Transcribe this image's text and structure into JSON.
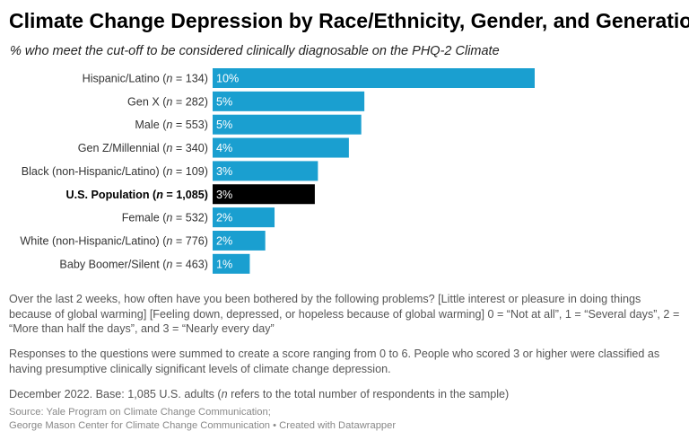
{
  "title": "Climate Change Depression by Race/Ethnicity, Gender, and Generation",
  "subtitle": "% who meet the cut-off to be considered clinically diagnosable on the PHQ-2 Climate",
  "colors": {
    "bar": "#1a9fd0",
    "highlight_bar": "#000000",
    "label_text": "#333333",
    "value_text": "#ffffff"
  },
  "chart_data": {
    "type": "bar",
    "orientation": "horizontal",
    "categories": [
      "Hispanic/Latino (n = 134)",
      "Gen X (n = 282)",
      "Male (n = 553)",
      "Gen Z/Millennial (n = 340)",
      "Black (non-Hispanic/Latino) (n = 109)",
      "U.S. Population (n = 1,085)",
      "Female (n = 532)",
      "White (non-Hispanic/Latino) (n = 776)",
      "Baby Boomer/Silent (n = 463)"
    ],
    "category_parts": [
      {
        "pre": "Hispanic/Latino (",
        "post": " = 134)"
      },
      {
        "pre": "Gen X (",
        "post": " = 282)"
      },
      {
        "pre": "Male (",
        "post": " = 553)"
      },
      {
        "pre": "Gen Z/Millennial (",
        "post": " = 340)"
      },
      {
        "pre": "Black (non-Hispanic/Latino) (",
        "post": " = 109)"
      },
      {
        "pre": "U.S. Population (",
        "post": " = 1,085)"
      },
      {
        "pre": "Female (",
        "post": " = 532)"
      },
      {
        "pre": "White (non-Hispanic/Latino) (",
        "post": " = 776)"
      },
      {
        "pre": "Baby Boomer/Silent (",
        "post": " = 463)"
      }
    ],
    "values": [
      10.4,
      4.9,
      4.8,
      4.4,
      3.4,
      3.3,
      2.0,
      1.7,
      1.2
    ],
    "value_labels": [
      "10%",
      "5%",
      "5%",
      "4%",
      "3%",
      "3%",
      "2%",
      "2%",
      "1%"
    ],
    "highlight_index": 5,
    "xlim": [
      0,
      10.4
    ],
    "grid": false,
    "xlabel": "",
    "ylabel": ""
  },
  "notes": {
    "question": "Over the last 2 weeks, how often have you been bothered by the following problems? [Little interest or pleasure in doing things because of global warming] [Feeling down, depressed, or hopeless because of global warming] 0 = “Not at all”, 1 = “Several days”, 2 = “More than half the days”, and 3 = “Nearly every day”",
    "scoring": "Responses to the questions were summed to create a score ranging from 0 to 6. People who scored 3 or higher were classified as having presumptive clinically significant levels of climate change depression.",
    "base_pre": "December 2022. Base: 1,085 U.S. adults (",
    "base_n": "n",
    "base_post": " refers to the total number of respondents in the sample)"
  },
  "source": {
    "line1": "Source: Yale Program on Climate Change Communication;",
    "line2": "George Mason Center for Climate Change Communication • Created with Datawrapper"
  }
}
